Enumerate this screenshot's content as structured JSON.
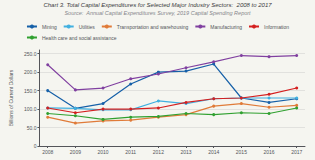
{
  "chart_data": {
    "type": "line",
    "title": "Chart 3. Total Capital Expenditures for Selected Major Industry Sectors:  2008 to 2017",
    "subtitle": "Source:  Annual Capital Expenditures Survey, 2019 Capital Spending Report",
    "ylabel": "Billions of Current Dollars",
    "x": [
      2008,
      2009,
      2010,
      2011,
      2012,
      2013,
      2014,
      2015,
      2016,
      2017
    ],
    "xlim": [
      2007.7,
      2017.3
    ],
    "xticks": [
      2008,
      2009,
      2010,
      2011,
      2012,
      2013,
      2014,
      2015,
      2016,
      2017
    ],
    "ylim": [
      0,
      260
    ],
    "yticks": [
      0,
      {
        "value": 50,
        "label": "50.0"
      },
      {
        "value": 100,
        "label": "100.0"
      },
      {
        "value": 150,
        "label": "150.0"
      },
      {
        "value": 200,
        "label": "200.0"
      },
      {
        "value": 250,
        "label": "250.0"
      }
    ],
    "grid": "y",
    "legend": "top",
    "series": [
      {
        "name": "Mining",
        "color": "#1660a8",
        "marker": "circle",
        "values": [
          150,
          102,
          115,
          168,
          200,
          203,
          222,
          130,
          118,
          128
        ]
      },
      {
        "name": "Utilities",
        "color": "#41b0e0",
        "marker": "circle",
        "values": [
          103,
          102,
          98,
          98,
          122,
          115,
          128,
          130,
          130,
          130
        ]
      },
      {
        "name": "Transportation and warehousing",
        "color": "#e07b39",
        "marker": "circle",
        "values": [
          78,
          62,
          68,
          70,
          78,
          85,
          108,
          115,
          105,
          110
        ]
      },
      {
        "name": "Manufacturing",
        "color": "#8040a0",
        "marker": "circle",
        "values": [
          220,
          152,
          157,
          182,
          195,
          212,
          228,
          245,
          242,
          245
        ]
      },
      {
        "name": "Information",
        "color": "#d42020",
        "marker": "circle",
        "values": [
          103,
          90,
          100,
          100,
          103,
          118,
          128,
          130,
          140,
          157
        ]
      },
      {
        "name": "Health care and social assistance",
        "color": "#30a030",
        "marker": "circle",
        "values": [
          88,
          82,
          72,
          78,
          80,
          88,
          85,
          90,
          88,
          103
        ]
      }
    ]
  }
}
